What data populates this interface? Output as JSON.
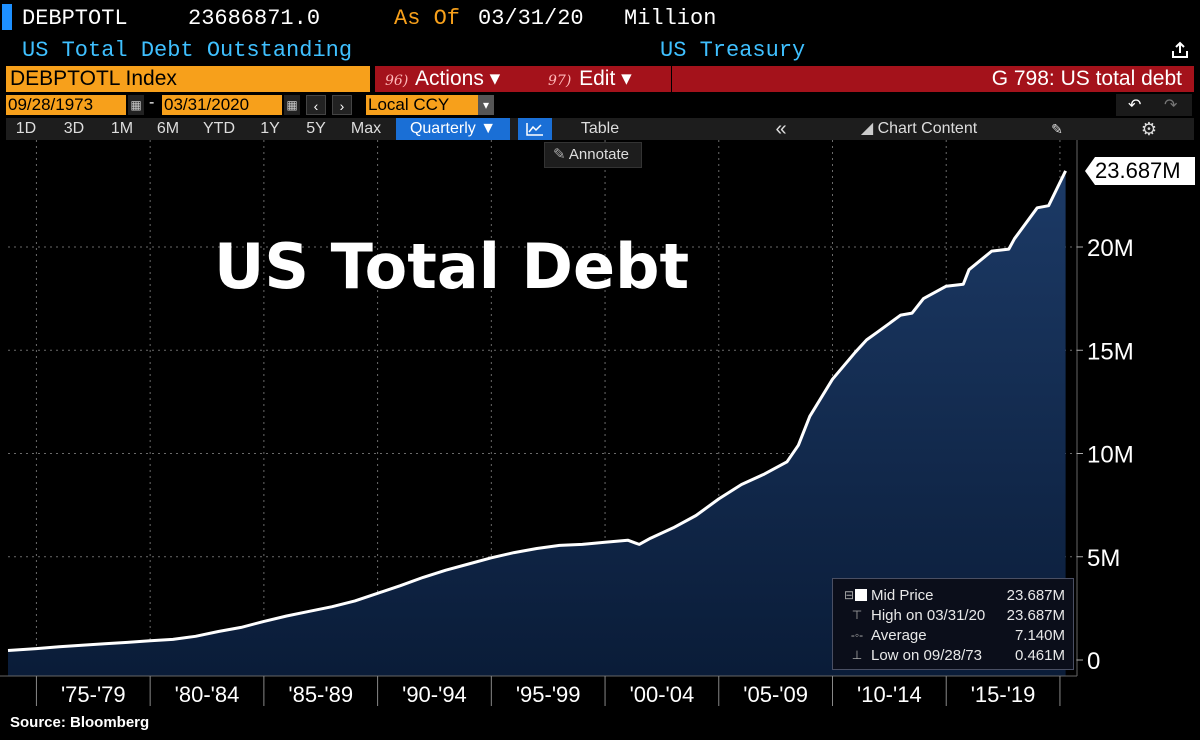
{
  "header": {
    "ticker": "DEBPTOTL",
    "last_value": "23686871.0",
    "as_of_label": "As Of",
    "as_of_date": "03/31/20",
    "units": "Million",
    "description": "US Total Debt Outstanding",
    "source_org": "US Treasury"
  },
  "command_bar": {
    "index_label": "DEBPTOTL Index",
    "actions_num": "96)",
    "actions_label": "Actions ▾",
    "edit_num": "97)",
    "edit_label": "Edit ▾",
    "chart_title": "G 798: US total debt"
  },
  "date_range": {
    "start": "09/28/1973",
    "end": "03/31/2020",
    "separator": "-",
    "currency": "Local CCY"
  },
  "period_tabs": [
    "1D",
    "3D",
    "1M",
    "6M",
    "YTD",
    "1Y",
    "5Y",
    "Max"
  ],
  "frequency": "Quarterly ▼",
  "toolbar": {
    "table_label": "Table",
    "collapse_glyph": "«",
    "chart_content_label": "Chart Content",
    "annotate_label": "Annotate"
  },
  "legend": {
    "items": [
      {
        "label": "Mid Price",
        "value": "23.687M"
      },
      {
        "label": "High on 03/31/20",
        "value": "23.687M"
      },
      {
        "label": "Average",
        "value": "7.140M"
      },
      {
        "label": "Low on 09/28/73",
        "value": "0.461M"
      }
    ]
  },
  "last_value_callout": "23.687M",
  "source": "Source: Bloomberg",
  "colors": {
    "line": "#ffffff",
    "area_top": "#1c3a66",
    "area_bottom": "#0a1c38",
    "orange": "#f7a01b",
    "red": "#a4121b",
    "cyan": "#3fc0ff",
    "tab_active": "#1a6fd6"
  },
  "chart_data": {
    "type": "area",
    "title": "US Total Debt",
    "units": "Million",
    "x": [
      1973.75,
      1975.0,
      1976.0,
      1977.0,
      1978.0,
      1979.0,
      1980.0,
      1981.0,
      1982.0,
      1983.0,
      1984.0,
      1985.0,
      1986.0,
      1987.0,
      1988.0,
      1989.0,
      1990.0,
      1991.0,
      1992.0,
      1993.0,
      1994.0,
      1995.0,
      1996.0,
      1997.0,
      1998.0,
      1999.0,
      2000.0,
      2001.0,
      2001.5,
      2002.0,
      2003.0,
      2004.0,
      2005.0,
      2006.0,
      2007.0,
      2008.0,
      2008.5,
      2009.0,
      2010.0,
      2011.0,
      2011.5,
      2012.0,
      2013.0,
      2013.5,
      2014.0,
      2015.0,
      2015.75,
      2016.0,
      2017.0,
      2017.75,
      2018.0,
      2019.0,
      2019.5,
      2020.25
    ],
    "values": [
      0.461,
      0.55,
      0.64,
      0.71,
      0.79,
      0.85,
      0.93,
      1.0,
      1.15,
      1.38,
      1.58,
      1.87,
      2.13,
      2.36,
      2.58,
      2.86,
      3.23,
      3.6,
      4.0,
      4.35,
      4.65,
      4.95,
      5.2,
      5.4,
      5.55,
      5.6,
      5.7,
      5.8,
      5.6,
      5.9,
      6.4,
      7.0,
      7.8,
      8.5,
      9.0,
      9.6,
      10.4,
      11.8,
      13.6,
      14.9,
      15.5,
      15.9,
      16.7,
      16.8,
      17.5,
      18.1,
      18.2,
      18.9,
      19.8,
      19.9,
      20.4,
      21.9,
      22.0,
      23.687
    ],
    "xlabel": "",
    "ylabel": "",
    "ylim": [
      0,
      25
    ],
    "y_ticks": [
      0,
      5,
      10,
      15,
      20
    ],
    "y_tick_labels": [
      "0",
      "5M",
      "10M",
      "15M",
      "20M"
    ],
    "x_tick_labels": [
      "'75-'79",
      "'80-'84",
      "'85-'89",
      "'90-'94",
      "'95-'99",
      "'00-'04",
      "'05-'09",
      "'10-'14",
      "'15-'19"
    ],
    "x_groups": [
      [
        1975,
        1980
      ],
      [
        1980,
        1985
      ],
      [
        1985,
        1990
      ],
      [
        1990,
        1995
      ],
      [
        1995,
        2000
      ],
      [
        2000,
        2005
      ],
      [
        2005,
        2010
      ],
      [
        2010,
        2015
      ],
      [
        2015,
        2020
      ]
    ],
    "xlim": [
      1973.75,
      2020.75
    ],
    "grid": true,
    "legend_position": "bottom-right"
  }
}
